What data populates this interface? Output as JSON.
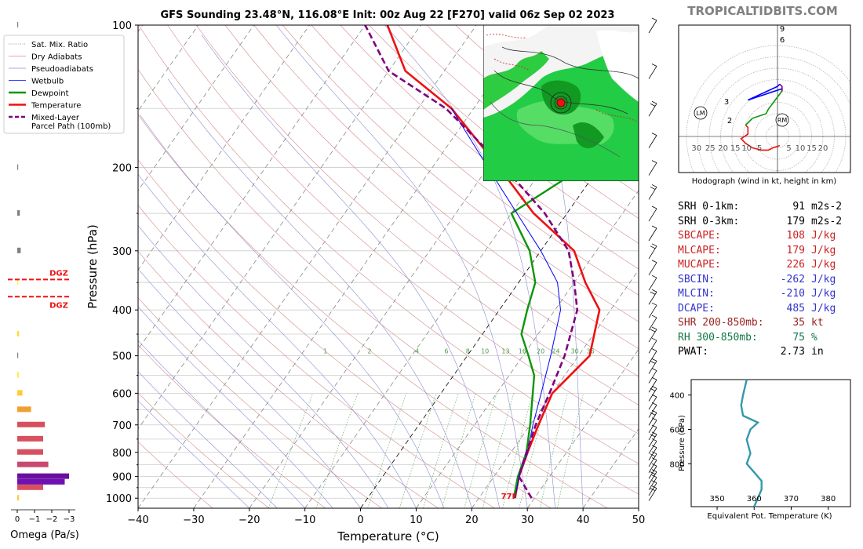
{
  "header": {
    "title": "GFS Sounding 23.48°N, 116.08°E Init: 00z Aug 22 [F270] valid 06z Sep 02 2023",
    "brand": "TROPICALTIDBITS.COM"
  },
  "legend": {
    "items": [
      {
        "label": "Sat. Mix. Ratio",
        "color": "#4c9a4c",
        "style": "dotted"
      },
      {
        "label": "Dry Adiabats",
        "color": "#d28c8c",
        "style": "solid"
      },
      {
        "label": "Pseudoadiabats",
        "color": "#8c8cd2",
        "style": "solid"
      },
      {
        "label": "Wetbulb",
        "color": "#0000ff",
        "style": "solid"
      },
      {
        "label": "Dewpoint",
        "color": "#0a960a",
        "style": "solid"
      },
      {
        "label": "Temperature",
        "color": "#ee1111",
        "style": "solid"
      },
      {
        "label": "Mixed-Layer",
        "label2": "Parcel Path (100mb)",
        "color": "#800080",
        "style": "dashed"
      }
    ]
  },
  "chart_data": [
    {
      "type": "line",
      "name": "skew-t",
      "xlabel": "Temperature (°C)",
      "ylabel": "Pressure (hPa)",
      "xlim": [
        -40,
        50
      ],
      "ylim": [
        1050,
        100
      ],
      "y_scale": "log",
      "x_ticks": [
        -40,
        -30,
        -20,
        -10,
        0,
        10,
        20,
        30,
        40,
        50
      ],
      "x_tick_labels": [
        "−40",
        "−30",
        "−20",
        "−10",
        "0",
        "10",
        "20",
        "30",
        "40",
        "50"
      ],
      "y_ticks": [
        100,
        200,
        300,
        400,
        500,
        600,
        700,
        800,
        900,
        1000
      ],
      "grid": true,
      "surface_label": "77F",
      "dgz_label": "DGZ",
      "mixing_ratio_labels": [
        "1",
        "2",
        "4",
        "6",
        "8",
        "10",
        "13",
        "16",
        "20",
        "24",
        "30",
        "36"
      ],
      "series": [
        {
          "name": "Temperature",
          "color": "#ee1111",
          "points": [
            [
              26.5,
              1000
            ],
            [
              24.5,
              900
            ],
            [
              23,
              800
            ],
            [
              21.5,
              700
            ],
            [
              20,
              600
            ],
            [
              22,
              500
            ],
            [
              18,
              400
            ],
            [
              12,
              350
            ],
            [
              6,
              300
            ],
            [
              -6,
              250
            ],
            [
              -18,
              200
            ],
            [
              -34,
              150
            ],
            [
              -47,
              125
            ],
            [
              -56,
              100
            ]
          ]
        },
        {
          "name": "Dewpoint",
          "color": "#0a960a",
          "points": [
            [
              26.3,
              1000
            ],
            [
              24.3,
              900
            ],
            [
              22.8,
              800
            ],
            [
              20,
              700
            ],
            [
              16.5,
              600
            ],
            [
              14.5,
              550
            ],
            [
              11,
              500
            ],
            [
              7,
              450
            ],
            [
              5,
              400
            ],
            [
              3,
              350
            ],
            [
              -2,
              300
            ],
            [
              -10,
              250
            ],
            [
              -3,
              200
            ],
            [
              -15,
              150
            ]
          ]
        },
        {
          "name": "Wetbulb",
          "color": "#0000ff",
          "points": [
            [
              26.5,
              1000
            ],
            [
              24.5,
              900
            ],
            [
              23,
              800
            ],
            [
              20.5,
              700
            ],
            [
              18,
              600
            ],
            [
              15,
              500
            ],
            [
              11,
              400
            ],
            [
              7,
              350
            ],
            [
              0,
              300
            ],
            [
              -9,
              250
            ],
            [
              -20,
              200
            ],
            [
              -34,
              150
            ]
          ]
        },
        {
          "name": "Mixed-Layer Parcel Path (100mb)",
          "color": "#800080",
          "points": [
            [
              29.5,
              1000
            ],
            [
              24.5,
              900
            ],
            [
              22.8,
              800
            ],
            [
              21,
              700
            ],
            [
              19.5,
              600
            ],
            [
              17.5,
              500
            ],
            [
              14,
              400
            ],
            [
              10,
              350
            ],
            [
              5,
              300
            ],
            [
              -4,
              250
            ],
            [
              -17,
              200
            ],
            [
              -35,
              150
            ],
            [
              -50,
              125
            ],
            [
              -60,
              100
            ]
          ]
        }
      ]
    },
    {
      "type": "bar",
      "name": "omega",
      "xlabel": "Omega (Pa/s)",
      "x_ticks": [
        0,
        -1,
        -2,
        -3
      ],
      "x_tick_labels": [
        "0",
        "−1",
        "−2",
        "−3"
      ],
      "levels": [
        1000,
        950,
        925,
        900,
        850,
        800,
        750,
        700,
        650,
        600,
        550,
        500,
        450,
        400,
        350,
        300,
        250,
        200,
        150,
        100
      ],
      "values": [
        -0.1,
        -1.5,
        -2.75,
        -3.0,
        -1.8,
        -1.5,
        -1.5,
        -1.6,
        -0.8,
        -0.3,
        -0.1,
        -0.05,
        -0.1,
        0.0,
        -0.05,
        -0.2,
        -0.15,
        -0.02,
        -0.2,
        -0.01
      ],
      "colors": [
        "#ffcc33",
        "#d85060",
        "#7010b0",
        "#6a10a0",
        "#c84870",
        "#d85060",
        "#d85060",
        "#d85060",
        "#f0a030",
        "#ffcc33",
        "#ffee44",
        "#808080",
        "#ffdd22",
        "#ffffff",
        "#ffee44",
        "#808080",
        "#808080",
        "#808080",
        "#f0a030",
        "#808080"
      ],
      "dgz_range": [
        345,
        375
      ]
    },
    {
      "type": "line",
      "name": "hodograph",
      "xlabel": "Hodograph (wind in kt, height in km)",
      "ring_labels": [
        "30",
        "25",
        "20",
        "15",
        "10",
        "5",
        "5",
        "10",
        "15",
        "20"
      ],
      "height_labels": [
        "2",
        "3",
        "6",
        "9"
      ],
      "markers": [
        "LM",
        "RM"
      ],
      "series": [
        {
          "name": "0-1km",
          "color": "#ee1111",
          "points": [
            [
              1,
              -4
            ],
            [
              -2,
              -5
            ],
            [
              -4,
              -6
            ],
            [
              -7,
              -6
            ],
            [
              -11,
              -5
            ],
            [
              -14,
              -3
            ],
            [
              -16,
              -1
            ],
            [
              -13,
              1
            ],
            [
              -13,
              4
            ],
            [
              -14,
              5
            ]
          ]
        },
        {
          "name": "1-3km",
          "color": "#0a960a",
          "points": [
            [
              -14,
              5
            ],
            [
              -11,
              8
            ],
            [
              -5,
              10
            ],
            [
              -4,
              12
            ],
            [
              2,
              20
            ],
            [
              2,
              21
            ]
          ]
        },
        {
          "name": "3-6km",
          "color": "#0000ff",
          "points": [
            [
              2,
              21
            ],
            [
              -13,
              16
            ],
            [
              0,
              22
            ],
            [
              1,
              23
            ]
          ]
        },
        {
          "name": "6-9km",
          "color": "#800080",
          "points": [
            [
              1,
              23
            ],
            [
              2,
              22
            ],
            [
              2,
              20
            ]
          ]
        }
      ]
    },
    {
      "type": "line",
      "name": "theta-e",
      "xlabel": "Equivalent Pot. Temperature (K)",
      "ylabel": "Pressure (hPa)",
      "xlim": [
        343,
        386
      ],
      "ylim": [
        1050,
        310
      ],
      "x_ticks": [
        350,
        360,
        370,
        380
      ],
      "y_ticks": [
        400,
        600,
        800
      ],
      "series": [
        {
          "name": "Theta-E",
          "color": "#3399aa",
          "values": [
            [
              358,
              310
            ],
            [
              357,
              400
            ],
            [
              356.5,
              460
            ],
            [
              357,
              520
            ],
            [
              361,
              560
            ],
            [
              359,
              600
            ],
            [
              358,
              660
            ],
            [
              359,
              740
            ],
            [
              358,
              800
            ],
            [
              360,
              850
            ],
            [
              362,
              900
            ],
            [
              362,
              950
            ],
            [
              360,
              1050
            ]
          ]
        }
      ]
    }
  ],
  "stats": [
    {
      "label": "SRH 0-1km:",
      "value": "91",
      "unit": "m2s-2",
      "color": "#000000"
    },
    {
      "label": "SRH 0-3km:",
      "value": "179",
      "unit": "m2s-2",
      "color": "#000000"
    },
    {
      "label": "SBCAPE:",
      "value": "108",
      "unit": "J/kg",
      "color": "#cc2222"
    },
    {
      "label": "MLCAPE:",
      "value": "179",
      "unit": "J/kg",
      "color": "#cc2222"
    },
    {
      "label": "MUCAPE:",
      "value": "226",
      "unit": "J/kg",
      "color": "#cc2222"
    },
    {
      "label": "SBCIN:",
      "value": "-262",
      "unit": "J/kg",
      "color": "#3333cc"
    },
    {
      "label": "MLCIN:",
      "value": "-210",
      "unit": "J/kg",
      "color": "#3333cc"
    },
    {
      "label": "DCAPE:",
      "value": "485",
      "unit": "J/kg",
      "color": "#3333cc"
    },
    {
      "label": "SHR 200-850mb:",
      "value": "35",
      "unit": "kt",
      "color": "#992222"
    },
    {
      "label": "RH 300-850mb:",
      "value": "75",
      "unit": "%",
      "color": "#117744"
    },
    {
      "label": "PWAT:",
      "value": "2.73",
      "unit": "in",
      "color": "#000000"
    }
  ]
}
